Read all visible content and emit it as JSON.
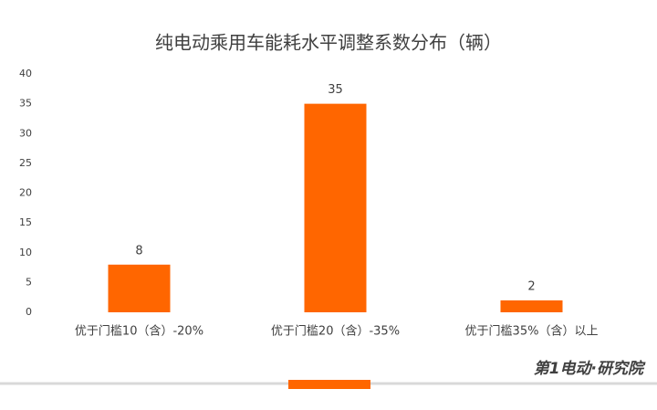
{
  "chart_data": {
    "type": "bar",
    "title": "纯电动乘用车能耗水平调整系数分布（辆）",
    "categories": [
      "优于门槛10（含）-20%",
      "优于门槛20（含）-35%",
      "优于门槛35%（含）以上"
    ],
    "values": [
      8,
      35,
      2
    ],
    "color": "#ff6600",
    "ylim": [
      0,
      40
    ],
    "yticks": [
      0,
      5,
      10,
      15,
      20,
      25,
      30,
      35,
      40
    ],
    "grid": false,
    "watermark": "第1电动·研究院"
  }
}
